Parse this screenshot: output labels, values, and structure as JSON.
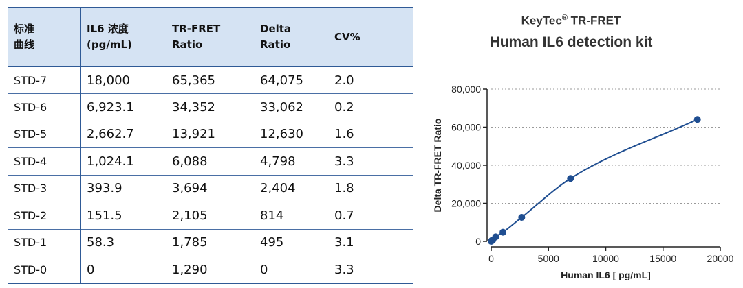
{
  "table": {
    "headers": [
      "标准\n曲线",
      "IL6 浓度\n(pg/mL)",
      "TR-FRET\nRatio",
      "Delta\nRatio",
      "CV%"
    ],
    "rows": [
      [
        "STD-7",
        "18,000",
        "65,365",
        "64,075",
        "2.0"
      ],
      [
        "STD-6",
        "6,923.1",
        "34,352",
        "33,062",
        "0.2"
      ],
      [
        "STD-5",
        "2,662.7",
        "13,921",
        "12,630",
        "1.6"
      ],
      [
        "STD-4",
        "1,024.1",
        "6,088",
        "4,798",
        "3.3"
      ],
      [
        "STD-3",
        "393.9",
        "3,694",
        "2,404",
        "1.8"
      ],
      [
        "STD-2",
        "151.5",
        "2,105",
        "814",
        "0.7"
      ],
      [
        "STD-1",
        "58.3",
        "1,785",
        "495",
        "3.1"
      ],
      [
        "STD-0",
        "0",
        "1,290",
        "0",
        "3.3"
      ]
    ]
  },
  "chart_data": {
    "type": "scatter",
    "title_brand": "KeyTec",
    "title_mark": "®",
    "title_suffix": " TR-FRET",
    "subtitle": "Human IL6 detection kit",
    "xlabel": "Human IL6 [ pg/mL]",
    "ylabel": "Delta TR-FRET Ratio",
    "xlim": [
      0,
      20000
    ],
    "ylim": [
      0,
      80000
    ],
    "xticks": [
      0,
      5000,
      10000,
      15000,
      20000
    ],
    "xtick_labels": [
      "0",
      "5000",
      "10000",
      "15000",
      "20000"
    ],
    "yticks": [
      0,
      20000,
      40000,
      60000,
      80000
    ],
    "ytick_labels": [
      "0",
      "20,000",
      "40,000",
      "60,000",
      "80,000"
    ],
    "grid": "horizontal dotted",
    "series": [
      {
        "x": [
          18000,
          6923.1,
          2662.7,
          1024.1,
          393.9,
          151.5,
          58.3,
          0
        ],
        "y": [
          64075,
          33062,
          12630,
          4798,
          2404,
          814,
          495,
          0
        ],
        "fit_curve": true
      }
    ],
    "colors": {
      "marker": "#1f4e91",
      "curve": "#1f4e91",
      "header_bg": "#d5e3f3",
      "rule": "#2f5a96"
    }
  }
}
